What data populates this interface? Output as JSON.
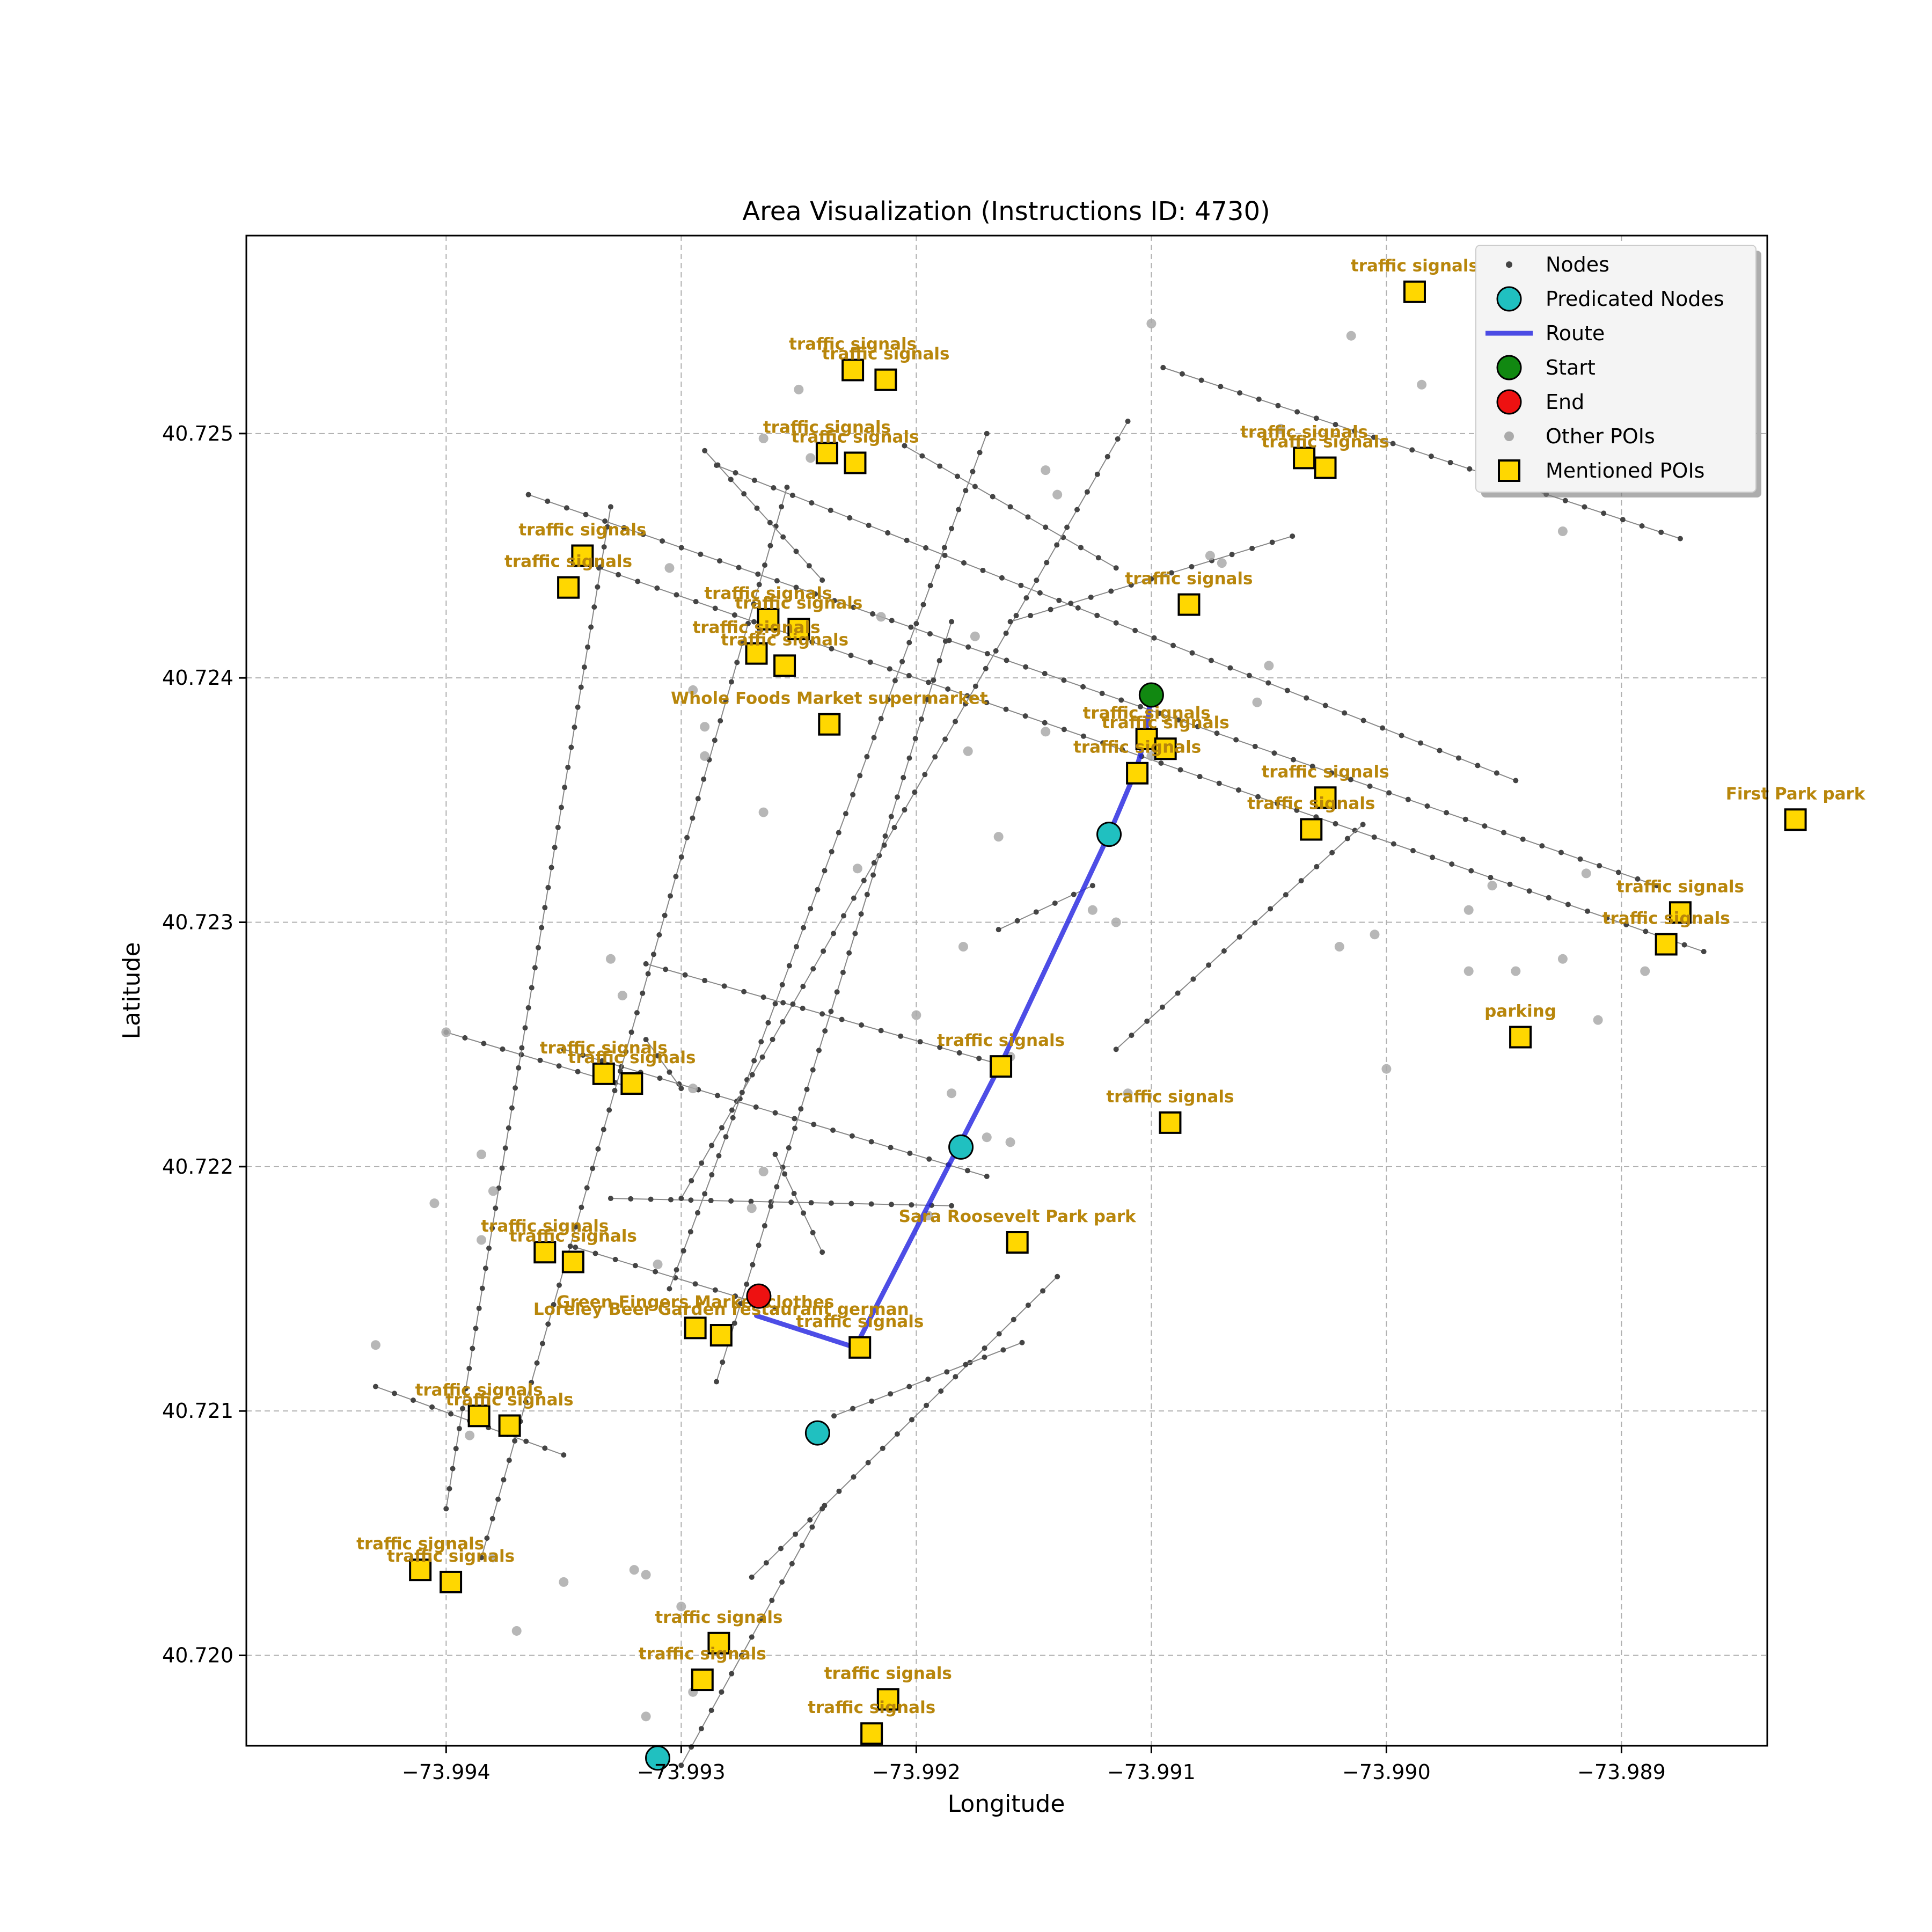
{
  "chart_data": {
    "type": "scatter",
    "title": "Area Visualization (Instructions ID: 4730)",
    "xlabel": "Longitude",
    "ylabel": "Latitude",
    "xlim": [
      -73.99485,
      -73.98838
    ],
    "ylim": [
      40.71963,
      40.72581
    ],
    "grid": true,
    "x_ticks": [
      -73.994,
      -73.993,
      -73.992,
      -73.991,
      -73.99,
      -73.989
    ],
    "x_tick_labels": [
      "−73.994",
      "−73.993",
      "−73.992",
      "−73.991",
      "−73.990",
      "−73.989"
    ],
    "y_ticks": [
      40.72,
      40.721,
      40.722,
      40.723,
      40.724,
      40.725
    ],
    "y_tick_labels": [
      "40.720",
      "40.721",
      "40.722",
      "40.723",
      "40.724",
      "40.725"
    ],
    "legend": {
      "position": "top-right",
      "items": [
        {
          "label": "Nodes",
          "marker": "dot"
        },
        {
          "label": "Predicated Nodes",
          "marker": "cyan-circle"
        },
        {
          "label": "Route",
          "marker": "blue-line"
        },
        {
          "label": "Start",
          "marker": "green-circle"
        },
        {
          "label": "End",
          "marker": "red-circle"
        },
        {
          "label": "Other POIs",
          "marker": "gray-dot"
        },
        {
          "label": "Mentioned POIs",
          "marker": "yellow-square"
        }
      ]
    },
    "colors": {
      "route": "#2020e0",
      "predicted": "#20c0c0",
      "start": "#118811",
      "end": "#ee1111",
      "poi_fill": "#ffd700",
      "poi_label": "#b8860b",
      "other_poi": "#aaaaaa",
      "node": "#444444"
    },
    "streets": [
      [
        [
          -73.9943,
          40.7211
        ],
        [
          -73.9935,
          40.72082
        ]
      ],
      [
        [
          -73.994,
          40.72255
        ],
        [
          -73.9932,
          40.72232
        ]
      ],
      [
        [
          -73.99345,
          40.72167
        ],
        [
          -73.9926,
          40.72142
        ]
      ],
      [
        [
          -73.99315,
          40.72283
        ],
        [
          -73.99165,
          40.72242
        ]
      ],
      [
        [
          -73.9935,
          40.72248
        ],
        [
          -73.9917,
          40.72196
        ]
      ],
      [
        [
          -73.9933,
          40.72187
        ],
        [
          -73.99185,
          40.72184
        ]
      ],
      [
        [
          -73.99335,
          40.72445
        ],
        [
          -73.98865,
          40.72288
        ]
      ],
      [
        [
          -73.99365,
          40.72475
        ],
        [
          -73.98885,
          40.72315
        ]
      ],
      [
        [
          -73.99285,
          40.72487
        ],
        [
          -73.98945,
          40.72358
        ]
      ],
      [
        [
          -73.99205,
          40.72495
        ],
        [
          -73.99115,
          40.72445
        ]
      ],
      [
        [
          -73.99095,
          40.72527
        ],
        [
          -73.98875,
          40.72457
        ]
      ],
      [
        [
          -73.994,
          40.7206
        ],
        [
          -73.9933,
          40.7247
        ]
      ],
      [
        [
          -73.99385,
          40.7204
        ],
        [
          -73.99255,
          40.72478
        ]
      ],
      [
        [
          -73.99305,
          40.7215
        ],
        [
          -73.9917,
          40.725
        ]
      ],
      [
        [
          -73.99285,
          40.72112
        ],
        [
          -73.99185,
          40.72423
        ]
      ],
      [
        [
          -73.993,
          40.72187
        ],
        [
          -73.9911,
          40.72505
        ]
      ],
      [
        [
          -73.99315,
          40.72252
        ],
        [
          -73.993,
          40.72232
        ]
      ],
      [
        [
          -73.9916,
          40.72423
        ],
        [
          -73.9904,
          40.72458
        ]
      ],
      [
        [
          -73.9927,
          40.72032
        ],
        [
          -73.9914,
          40.72155
        ]
      ],
      [
        [
          -73.9924,
          40.7244
        ],
        [
          -73.9929,
          40.72493
        ]
      ],
      [
        [
          -73.9924,
          40.72165
        ],
        [
          -73.9926,
          40.72205
        ]
      ],
      [
        [
          -73.993,
          40.71955
        ],
        [
          -73.9924,
          40.7206
        ]
      ],
      [
        [
          -73.99235,
          40.72098
        ],
        [
          -73.99155,
          40.72128
        ]
      ],
      [
        [
          -73.99115,
          40.72248
        ],
        [
          -73.9901,
          40.7234
        ]
      ],
      [
        [
          -73.99165,
          40.72297
        ],
        [
          -73.99125,
          40.72315
        ]
      ]
    ],
    "route": [
      [
        -73.99268,
        40.72139
      ],
      [
        -73.99226,
        40.72126
      ],
      [
        -73.99164,
        40.72242
      ],
      [
        -73.99118,
        40.72336
      ],
      [
        -73.99107,
        40.72361
      ],
      [
        -73.99103,
        40.72374
      ],
      [
        -73.991,
        40.72393
      ]
    ],
    "predicted_nodes": [
      [
        -73.99118,
        40.72336
      ],
      [
        -73.99181,
        40.72208
      ],
      [
        -73.99242,
        40.72091
      ],
      [
        -73.9931,
        40.71958
      ]
    ],
    "start": [
      -73.991,
      40.72393
    ],
    "end": [
      -73.99267,
      40.72147
    ],
    "other_pois": [
      [
        -73.991,
        40.72545
      ],
      [
        -73.99015,
        40.7254
      ],
      [
        -73.98985,
        40.7252
      ],
      [
        -73.9925,
        40.72518
      ],
      [
        -73.99265,
        40.72498
      ],
      [
        -73.99245,
        40.7249
      ],
      [
        -73.99145,
        40.72485
      ],
      [
        -73.9914,
        40.72475
      ],
      [
        -73.99045,
        40.72502
      ],
      [
        -73.9907,
        40.72447
      ],
      [
        -73.99305,
        40.72445
      ],
      [
        -73.98925,
        40.7246
      ],
      [
        -73.99295,
        40.72395
      ],
      [
        -73.9905,
        40.72405
      ],
      [
        -73.99075,
        40.7245
      ],
      [
        -73.99215,
        40.72425
      ],
      [
        -73.9929,
        40.72368
      ],
      [
        -73.99175,
        40.72417
      ],
      [
        -73.99265,
        40.72345
      ],
      [
        -73.99225,
        40.72322
      ],
      [
        -73.99178,
        40.7237
      ],
      [
        -73.99165,
        40.72335
      ],
      [
        -73.9918,
        40.7229
      ],
      [
        -73.99145,
        40.72378
      ],
      [
        -73.99125,
        40.72305
      ],
      [
        -73.99115,
        40.723
      ],
      [
        -73.991,
        40.72368
      ],
      [
        -73.99055,
        40.7239
      ],
      [
        -73.9902,
        40.7229
      ],
      [
        -73.99005,
        40.72295
      ],
      [
        -73.98965,
        40.72305
      ],
      [
        -73.98955,
        40.72315
      ],
      [
        -73.98965,
        40.7228
      ],
      [
        -73.98945,
        40.7228
      ],
      [
        -73.98925,
        40.72285
      ],
      [
        -73.98915,
        40.7232
      ],
      [
        -73.9891,
        40.7226
      ],
      [
        -73.9889,
        40.7228
      ],
      [
        -73.9929,
        40.7238
      ],
      [
        -73.994,
        40.72255
      ],
      [
        -73.99295,
        40.72232
      ],
      [
        -73.992,
        40.72262
      ],
      [
        -73.99185,
        40.7223
      ],
      [
        -73.9916,
        40.72245
      ],
      [
        -73.9917,
        40.72212
      ],
      [
        -73.9916,
        40.7221
      ],
      [
        -73.9911,
        40.7223
      ],
      [
        -73.99,
        40.7224
      ],
      [
        -73.99325,
        40.7227
      ],
      [
        -73.9933,
        40.72285
      ],
      [
        -73.99385,
        40.72205
      ],
      [
        -73.9938,
        40.7219
      ],
      [
        -73.99405,
        40.72185
      ],
      [
        -73.99385,
        40.7217
      ],
      [
        -73.9943,
        40.72127
      ],
      [
        -73.9939,
        40.7209
      ],
      [
        -73.9931,
        40.7216
      ],
      [
        -73.99265,
        40.72198
      ],
      [
        -73.9927,
        40.72183
      ],
      [
        -73.99195,
        40.7218
      ],
      [
        -73.9938,
        40.7204
      ],
      [
        -73.993,
        40.7202
      ],
      [
        -73.99315,
        40.72033
      ],
      [
        -73.9932,
        40.72035
      ],
      [
        -73.9935,
        40.7203
      ],
      [
        -73.9937,
        40.7201
      ],
      [
        -73.99295,
        40.71985
      ],
      [
        -73.99315,
        40.71975
      ]
    ],
    "mentioned_pois": [
      {
        "label": "traffic signals",
        "coord": [
          -73.98988,
          40.72558
        ],
        "label_side": "up"
      },
      {
        "label": "traffic signals",
        "coord": [
          -73.99227,
          40.72526
        ],
        "label_side": "up"
      },
      {
        "label": "traffic signals",
        "coord": [
          -73.99213,
          40.72522
        ],
        "label_side": "up"
      },
      {
        "label": "traffic signals",
        "coord": [
          -73.99238,
          40.72492
        ],
        "label_side": "up"
      },
      {
        "label": "traffic signals",
        "coord": [
          -73.99226,
          40.72488
        ],
        "label_side": "up"
      },
      {
        "label": "traffic signals",
        "coord": [
          -73.99035,
          40.7249
        ],
        "label_side": "up"
      },
      {
        "label": "traffic signals",
        "coord": [
          -73.99026,
          40.72486
        ],
        "label_side": "up"
      },
      {
        "label": "traffic signals",
        "coord": [
          -73.99342,
          40.7245
        ],
        "label_side": "up"
      },
      {
        "label": "traffic signals",
        "coord": [
          -73.99348,
          40.72437
        ],
        "label_side": "up"
      },
      {
        "label": "traffic signals",
        "coord": [
          -73.99084,
          40.7243
        ],
        "label_side": "up"
      },
      {
        "label": "traffic signals",
        "coord": [
          -73.99263,
          40.72424
        ],
        "label_side": "up"
      },
      {
        "label": "traffic signals",
        "coord": [
          -73.9925,
          40.7242
        ],
        "label_side": "up"
      },
      {
        "label": "traffic signals",
        "coord": [
          -73.99268,
          40.7241
        ],
        "label_side": "up"
      },
      {
        "label": "traffic signals",
        "coord": [
          -73.99256,
          40.72405
        ],
        "label_side": "up"
      },
      {
        "label": "Whole Foods Market   supermarket",
        "coord": [
          -73.99237,
          40.72381
        ],
        "label_side": "up"
      },
      {
        "label": "traffic signals",
        "coord": [
          -73.99102,
          40.72375
        ],
        "label_side": "up"
      },
      {
        "label": "traffic signals",
        "coord": [
          -73.99094,
          40.72371
        ],
        "label_side": "up"
      },
      {
        "label": "traffic signals",
        "coord": [
          -73.99106,
          40.72361
        ],
        "label_side": "up"
      },
      {
        "label": "traffic signals",
        "coord": [
          -73.99026,
          40.72351
        ],
        "label_side": "up"
      },
      {
        "label": "traffic signals",
        "coord": [
          -73.99032,
          40.72338
        ],
        "label_side": "up"
      },
      {
        "label": "First Park   park",
        "coord": [
          -73.98826,
          40.72342
        ],
        "label_side": "up"
      },
      {
        "label": "traffic signals",
        "coord": [
          -73.98875,
          40.72304
        ],
        "label_side": "up"
      },
      {
        "label": "traffic signals",
        "coord": [
          -73.98881,
          40.72291
        ],
        "label_side": "up"
      },
      {
        "label": "parking",
        "coord": [
          -73.98943,
          40.72253
        ],
        "label_side": "up"
      },
      {
        "label": "traffic signals",
        "coord": [
          -73.99164,
          40.72241
        ],
        "label_side": "up"
      },
      {
        "label": "traffic signals",
        "coord": [
          -73.99333,
          40.72238
        ],
        "label_side": "up"
      },
      {
        "label": "traffic signals",
        "coord": [
          -73.99321,
          40.72234
        ],
        "label_side": "up"
      },
      {
        "label": "traffic signals",
        "coord": [
          -73.99092,
          40.72218
        ],
        "label_side": "up"
      },
      {
        "label": "Sara Roosevelt Park   park",
        "coord": [
          -73.99157,
          40.72169
        ],
        "label_side": "up"
      },
      {
        "label": "traffic signals",
        "coord": [
          -73.99358,
          40.72165
        ],
        "label_side": "up"
      },
      {
        "label": "traffic signals",
        "coord": [
          -73.99346,
          40.72161
        ],
        "label_side": "up"
      },
      {
        "label": "Green Fingers Market   clothes",
        "coord": [
          -73.99294,
          40.72134
        ],
        "label_side": "up"
      },
      {
        "label": "Loreley Beer Garden restaurant german",
        "coord": [
          -73.99283,
          40.72131
        ],
        "label_side": "up"
      },
      {
        "label": "traffic signals",
        "coord": [
          -73.99224,
          40.72126
        ],
        "label_side": "up"
      },
      {
        "label": "traffic signals",
        "coord": [
          -73.99386,
          40.72098
        ],
        "label_side": "up"
      },
      {
        "label": "traffic signals",
        "coord": [
          -73.99373,
          40.72094
        ],
        "label_side": "up"
      },
      {
        "label": "traffic signals",
        "coord": [
          -73.99411,
          40.72035
        ],
        "label_side": "up"
      },
      {
        "label": "traffic signals",
        "coord": [
          -73.99398,
          40.7203
        ],
        "label_side": "up"
      },
      {
        "label": "traffic signals",
        "coord": [
          -73.99284,
          40.72005
        ],
        "label_side": "up"
      },
      {
        "label": "traffic signals",
        "coord": [
          -73.99291,
          40.7199
        ],
        "label_side": "up"
      },
      {
        "label": "traffic signals",
        "coord": [
          -73.99212,
          40.71982
        ],
        "label_side": "up"
      },
      {
        "label": "traffic signals",
        "coord": [
          -73.99219,
          40.71968
        ],
        "label_side": "up"
      }
    ]
  }
}
